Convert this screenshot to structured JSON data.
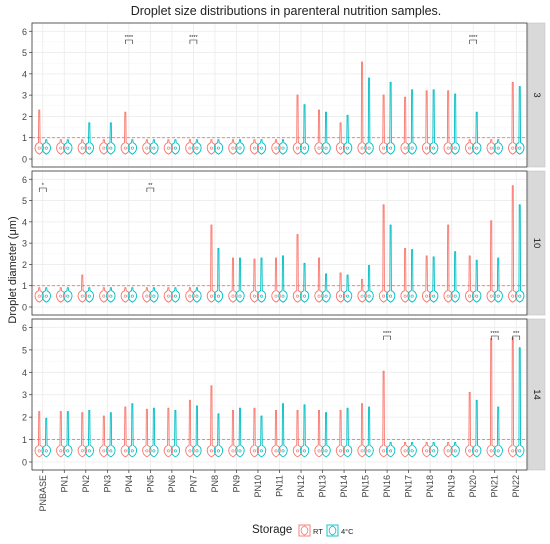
{
  "chart_data": {
    "type": "violin",
    "title": "Droplet size distributions in parenteral nutrition samples.",
    "xlabel": "",
    "ylabel": "Droplet diameter (μm)",
    "categories": [
      "PNBASE",
      "PN1",
      "PN2",
      "PN3",
      "PN4",
      "PN5",
      "PN6",
      "PN7",
      "PN8",
      "PN9",
      "PN10",
      "PN11",
      "PN12",
      "PN13",
      "PN14",
      "PN15",
      "PN16",
      "PN17",
      "PN18",
      "PN19",
      "PN20",
      "PN21",
      "PN22"
    ],
    "facets": [
      {
        "label": "3",
        "ylim": [
          0,
          6.2
        ],
        "yticks": [
          0,
          1,
          2,
          3,
          4,
          5,
          6
        ],
        "max_rt": [
          2.3,
          0.6,
          0.6,
          0.6,
          2.2,
          0.6,
          0.6,
          0.6,
          0.6,
          0.6,
          0.6,
          0.6,
          3.0,
          2.3,
          1.7,
          4.55,
          3.0,
          2.9,
          3.2,
          3.2,
          0.6,
          0.6,
          3.6
        ],
        "max_4c": [
          0.6,
          0.6,
          1.7,
          1.7,
          0.6,
          0.6,
          0.6,
          0.6,
          0.6,
          0.6,
          0.6,
          0.6,
          2.55,
          2.2,
          2.05,
          3.8,
          3.6,
          3.25,
          3.25,
          3.05,
          2.2,
          0.6,
          3.4
        ],
        "significance": [
          {
            "category": "PN4",
            "label": "****"
          },
          {
            "category": "PN7",
            "label": "****"
          },
          {
            "category": "PN20",
            "label": "****"
          }
        ]
      },
      {
        "label": "10",
        "ylim": [
          0,
          6.2
        ],
        "yticks": [
          0,
          1,
          2,
          3,
          4,
          5,
          6
        ],
        "max_rt": [
          0.6,
          0.6,
          1.5,
          0.6,
          0.6,
          0.6,
          0.6,
          0.6,
          3.85,
          2.3,
          2.25,
          2.3,
          3.4,
          2.3,
          1.6,
          1.3,
          4.8,
          2.75,
          2.4,
          3.85,
          2.4,
          4.05,
          5.7
        ],
        "max_4c": [
          0.6,
          0.6,
          0.6,
          0.6,
          0.6,
          0.6,
          0.6,
          0.6,
          2.75,
          2.3,
          2.3,
          2.4,
          2.05,
          1.55,
          1.5,
          1.95,
          3.85,
          2.7,
          2.35,
          2.6,
          2.2,
          2.3,
          4.8
        ],
        "significance": [
          {
            "category": "PNBASE",
            "label": "*"
          },
          {
            "category": "PN5",
            "label": "**"
          }
        ]
      },
      {
        "label": "14",
        "ylim": [
          0,
          6.2
        ],
        "yticks": [
          0,
          1,
          2,
          3,
          4,
          5,
          6
        ],
        "max_rt": [
          2.25,
          2.25,
          2.2,
          2.05,
          2.45,
          2.35,
          2.4,
          2.75,
          3.4,
          2.3,
          2.4,
          2.3,
          2.3,
          2.3,
          2.3,
          2.6,
          4.05,
          0.6,
          0.6,
          0.6,
          3.1,
          5.5,
          5.55
        ],
        "max_4c": [
          1.95,
          2.25,
          2.3,
          2.2,
          2.6,
          2.4,
          2.3,
          2.5,
          2.15,
          2.4,
          2.05,
          2.6,
          2.55,
          2.2,
          2.4,
          2.45,
          0.6,
          0.6,
          0.6,
          0.6,
          2.75,
          2.45,
          5.1
        ],
        "significance": [
          {
            "category": "PN16",
            "label": "****"
          },
          {
            "category": "PN21",
            "label": "****"
          },
          {
            "category": "PN22",
            "label": "***"
          }
        ]
      }
    ],
    "reference_line": {
      "y": 1
    },
    "legend": {
      "title": "Storage",
      "placement": "bottom",
      "entries": [
        {
          "label": "RT",
          "color": "#F8766D"
        },
        {
          "label": "4°C",
          "color": "#00BFC4"
        }
      ]
    },
    "grid": true
  },
  "colors": {
    "rt": "#F8766D",
    "cold": "#00BFC4",
    "panel_bg": "#FFFFFF",
    "panel_border": "#333333",
    "strip_bg": "#D9D9D9",
    "grid": "#EBEBEB"
  }
}
